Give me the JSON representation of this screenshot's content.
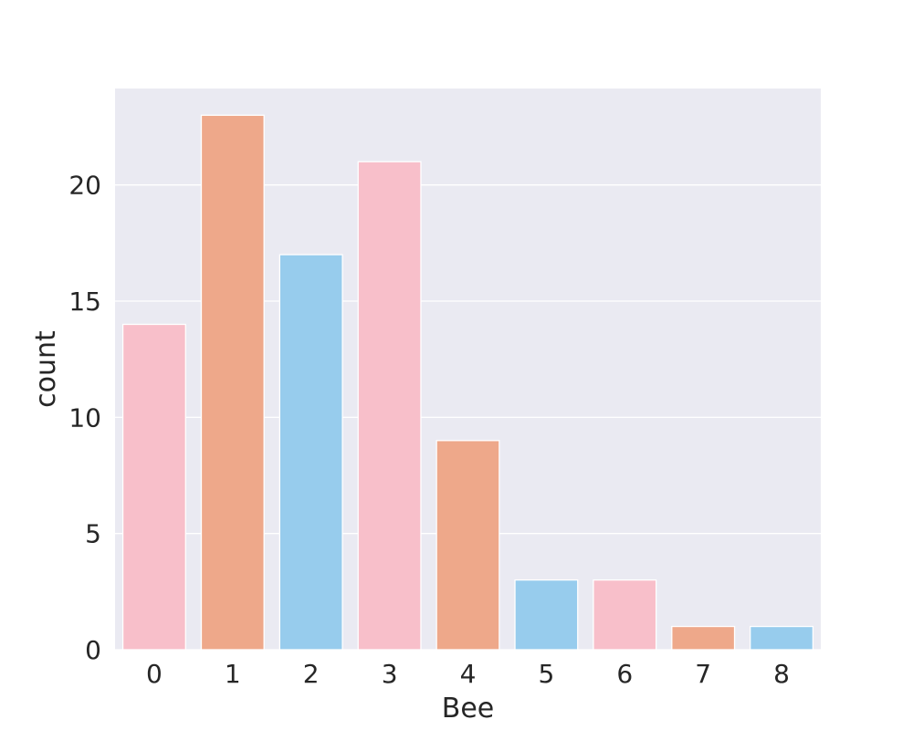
{
  "chart_data": {
    "type": "bar",
    "categories": [
      "0",
      "1",
      "2",
      "3",
      "4",
      "5",
      "6",
      "7",
      "8"
    ],
    "values": [
      14,
      23,
      17,
      21,
      9,
      3,
      3,
      1,
      1
    ],
    "xlabel": "Bee",
    "ylabel": "count",
    "ylim": [
      0,
      24.15
    ],
    "yticks": [
      0,
      5,
      10,
      15,
      20
    ],
    "grid": true,
    "colors": [
      "#f8bfca",
      "#eea88a",
      "#97cced",
      "#f8bfca",
      "#eea88a",
      "#97cced",
      "#f8bfca",
      "#eea88a",
      "#97cced"
    ],
    "background": "#eaeaf2"
  }
}
